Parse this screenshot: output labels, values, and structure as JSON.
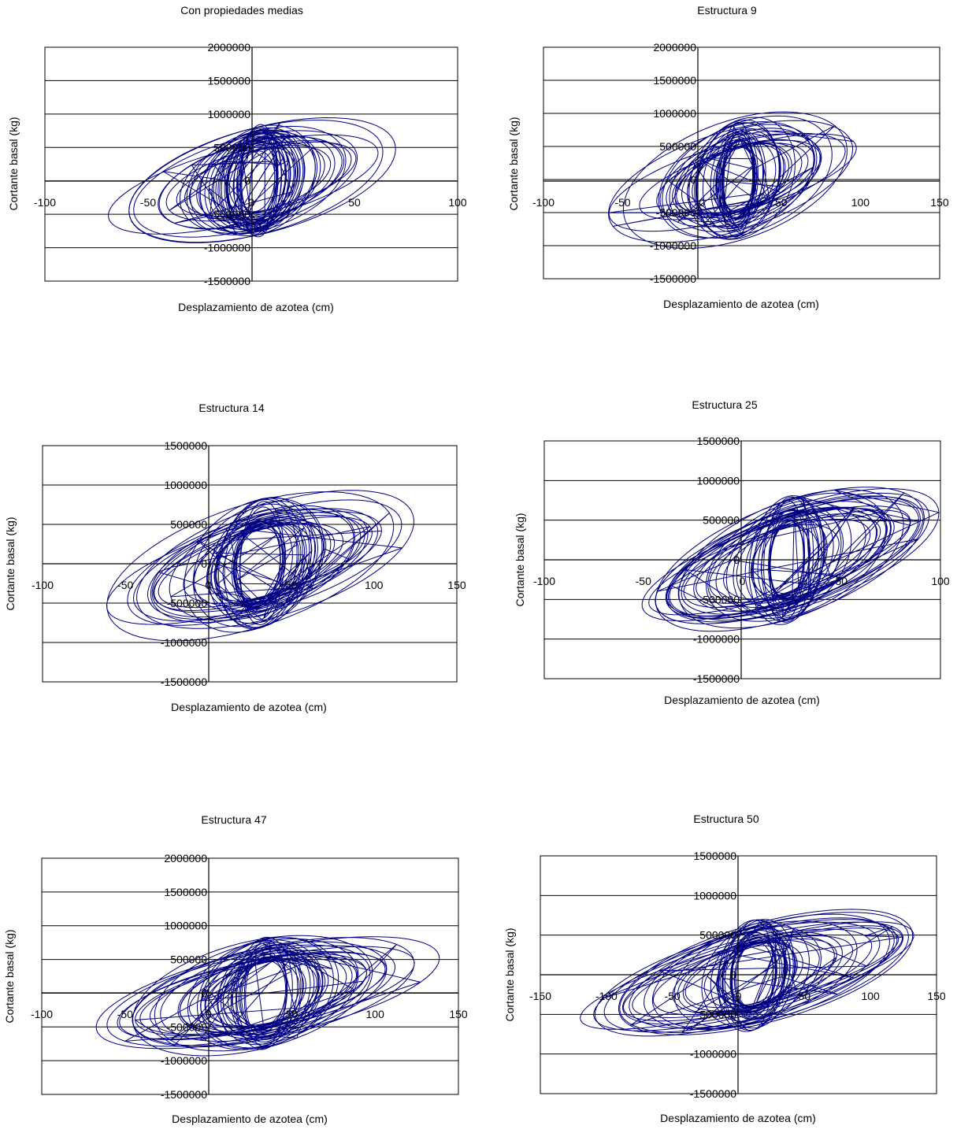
{
  "figure": {
    "xlabel": "Desplazamiento de azotea (cm)",
    "ylabel": "Cortante basal (kg)",
    "line_color": "#000080"
  },
  "chart_data": [
    {
      "type": "line",
      "title": "Con propiedades medias",
      "xlabel": "Desplazamiento de azotea (cm)",
      "ylabel": "Cortante basal (kg)",
      "xlim": [
        -100,
        100
      ],
      "ylim": [
        -1500000,
        2000000
      ],
      "xticks": [
        -100,
        -50,
        0,
        50,
        100
      ],
      "yticks": [
        -1500000,
        -1000000,
        -500000,
        0,
        500000,
        1000000,
        1500000,
        2000000
      ],
      "x_tick_labels": [
        "-100",
        "-50",
        "0",
        "50",
        "100"
      ],
      "y_tick_labels": [
        "-1500000",
        "-1000000",
        "-500000",
        "0",
        "500000",
        "1000000",
        "1500000",
        "2000000"
      ],
      "grid": true,
      "series": [
        {
          "shape": "hysteresis-loops",
          "x_range": [
            -65,
            72
          ],
          "y_range": [
            -1210000,
            1380000
          ],
          "slope": 13000,
          "loops": 40,
          "seed": 11
        }
      ]
    },
    {
      "type": "line",
      "title": "Estructura 9",
      "xlabel": "Desplazamiento de azotea (cm)",
      "ylabel": "Cortante basal (kg)",
      "xlim": [
        -100,
        150
      ],
      "ylim": [
        -1500000,
        2000000
      ],
      "xticks": [
        -100,
        -50,
        0,
        50,
        100,
        150
      ],
      "yticks": [
        -1500000,
        -1000000,
        -500000,
        0,
        500000,
        1000000,
        1500000,
        2000000
      ],
      "x_tick_labels": [
        "-100",
        "-50",
        "0",
        "50",
        "100",
        "150"
      ],
      "y_tick_labels": [
        "-1500000",
        "-1000000",
        "-500000",
        "0",
        "500000",
        "1000000",
        "1500000",
        "2000000"
      ],
      "grid": true,
      "series": [
        {
          "shape": "hysteresis-loops",
          "x_range": [
            -55,
            100
          ],
          "y_range": [
            -1330000,
            1390000
          ],
          "slope": 11500,
          "loops": 40,
          "seed": 23
        }
      ]
    },
    {
      "type": "line",
      "title": "Estructura 14",
      "xlabel": "Desplazamiento de azotea (cm)",
      "ylabel": "Cortante basal (kg)",
      "xlim": [
        -100,
        150
      ],
      "ylim": [
        -1500000,
        1500000
      ],
      "xticks": [
        -100,
        -50,
        0,
        50,
        100,
        150
      ],
      "yticks": [
        -1500000,
        -1000000,
        -500000,
        0,
        500000,
        1000000,
        1500000
      ],
      "x_tick_labels": [
        "-100",
        "-50",
        "0",
        "50",
        "100",
        "150"
      ],
      "y_tick_labels": [
        "-1500000",
        "-1000000",
        "-500000",
        "0",
        "500000",
        "1000000",
        "1500000"
      ],
      "grid": true,
      "series": [
        {
          "shape": "hysteresis-loops",
          "x_range": [
            -75,
            137
          ],
          "y_range": [
            -1200000,
            1370000
          ],
          "slope": 10500,
          "loops": 40,
          "seed": 37
        }
      ]
    },
    {
      "type": "line",
      "title": "Estructura 25",
      "xlabel": "Desplazamiento de azotea (cm)",
      "ylabel": "Cortante basal (kg)",
      "xlim": [
        -100,
        100
      ],
      "ylim": [
        -1500000,
        1500000
      ],
      "xticks": [
        -100,
        -50,
        0,
        50,
        100
      ],
      "yticks": [
        -1500000,
        -1000000,
        -500000,
        0,
        500000,
        1000000,
        1500000
      ],
      "x_tick_labels": [
        "-100",
        "-50",
        "0",
        "50",
        "100"
      ],
      "y_tick_labels": [
        "-1500000",
        "-1000000",
        "-500000",
        "0",
        "500000",
        "1000000",
        "1500000"
      ],
      "grid": true,
      "series": [
        {
          "shape": "hysteresis-loops",
          "x_range": [
            -47,
            93
          ],
          "y_range": [
            -1150000,
            1370000
          ],
          "slope": 14000,
          "loops": 40,
          "seed": 41
        }
      ]
    },
    {
      "type": "line",
      "title": "Estructura 47",
      "xlabel": "Desplazamiento de azotea (cm)",
      "ylabel": "Cortante basal (kg)",
      "xlim": [
        -100,
        150
      ],
      "ylim": [
        -1500000,
        2000000
      ],
      "xticks": [
        -100,
        -50,
        0,
        50,
        100,
        150
      ],
      "yticks": [
        -1500000,
        -1000000,
        -500000,
        0,
        500000,
        1000000,
        1500000,
        2000000
      ],
      "x_tick_labels": [
        "-100",
        "-50",
        "0",
        "50",
        "100",
        "150"
      ],
      "y_tick_labels": [
        "-1500000",
        "-1000000",
        "-500000",
        "0",
        "500000",
        "1000000",
        "1500000",
        "2000000"
      ],
      "grid": true,
      "series": [
        {
          "shape": "hysteresis-loops",
          "x_range": [
            -70,
            138
          ],
          "y_range": [
            -1230000,
            1340000
          ],
          "slope": 9000,
          "loops": 40,
          "seed": 53
        }
      ]
    },
    {
      "type": "line",
      "title": "Estructura 50",
      "xlabel": "Desplazamiento de azotea (cm)",
      "ylabel": "Cortante basal (kg)",
      "xlim": [
        -150,
        150
      ],
      "ylim": [
        -1500000,
        1500000
      ],
      "xticks": [
        -150,
        -100,
        -50,
        0,
        50,
        100,
        150
      ],
      "yticks": [
        -1500000,
        -1000000,
        -500000,
        0,
        500000,
        1000000,
        1500000
      ],
      "x_tick_labels": [
        "-150",
        "-100",
        "-50",
        "0",
        "50",
        "100",
        "150"
      ],
      "y_tick_labels": [
        "-1500000",
        "-1000000",
        "-500000",
        "0",
        "500000",
        "1000000",
        "1500000"
      ],
      "grid": true,
      "series": [
        {
          "shape": "hysteresis-loops",
          "x_range": [
            -110,
            135
          ],
          "y_range": [
            -1000000,
            1340000
          ],
          "slope": 7500,
          "loops": 40,
          "seed": 67
        }
      ]
    }
  ]
}
